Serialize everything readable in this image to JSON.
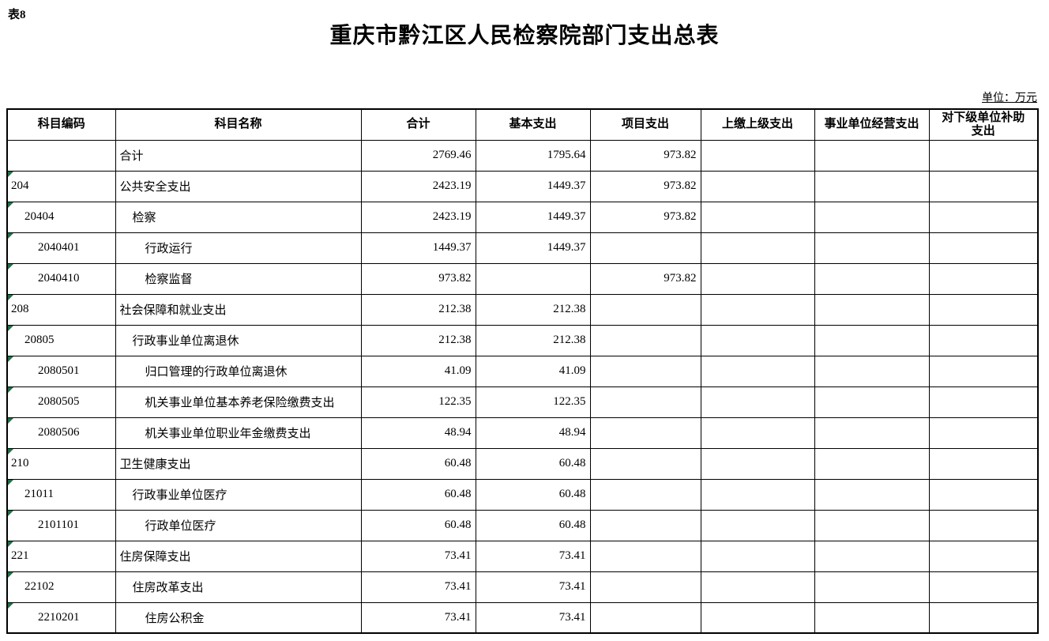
{
  "page": {
    "table_label": "表8",
    "title": "重庆市黔江区人民检察院部门支出总表",
    "unit_note": "单位：万元"
  },
  "colors": {
    "flag_green": "#1e7145",
    "border": "#000000",
    "background": "#ffffff"
  },
  "table": {
    "columns": [
      "科目编码",
      "科目名称",
      "合计",
      "基本支出",
      "项目支出",
      "上缴上级支出",
      "事业单位经营支出",
      "对下级单位补助\n支出"
    ],
    "rows": [
      {
        "code": "",
        "name": "合计",
        "indent": 0,
        "total": "2769.46",
        "basic": "1795.64",
        "project": "973.82",
        "superior": "",
        "operating": "",
        "subsidy": "",
        "flag": false
      },
      {
        "code": "204",
        "name": "公共安全支出",
        "indent": 0,
        "total": "2423.19",
        "basic": "1449.37",
        "project": "973.82",
        "superior": "",
        "operating": "",
        "subsidy": "",
        "flag": true
      },
      {
        "code": "20404",
        "name": "检察",
        "indent": 1,
        "total": "2423.19",
        "basic": "1449.37",
        "project": "973.82",
        "superior": "",
        "operating": "",
        "subsidy": "",
        "flag": true
      },
      {
        "code": "2040401",
        "name": "行政运行",
        "indent": 2,
        "total": "1449.37",
        "basic": "1449.37",
        "project": "",
        "superior": "",
        "operating": "",
        "subsidy": "",
        "flag": true
      },
      {
        "code": "2040410",
        "name": "检察监督",
        "indent": 2,
        "total": "973.82",
        "basic": "",
        "project": "973.82",
        "superior": "",
        "operating": "",
        "subsidy": "",
        "flag": true
      },
      {
        "code": "208",
        "name": "社会保障和就业支出",
        "indent": 0,
        "total": "212.38",
        "basic": "212.38",
        "project": "",
        "superior": "",
        "operating": "",
        "subsidy": "",
        "flag": true
      },
      {
        "code": "20805",
        "name": "行政事业单位离退休",
        "indent": 1,
        "total": "212.38",
        "basic": "212.38",
        "project": "",
        "superior": "",
        "operating": "",
        "subsidy": "",
        "flag": true
      },
      {
        "code": "2080501",
        "name": "归口管理的行政单位离退休",
        "indent": 2,
        "total": "41.09",
        "basic": "41.09",
        "project": "",
        "superior": "",
        "operating": "",
        "subsidy": "",
        "flag": true
      },
      {
        "code": "2080505",
        "name": "机关事业单位基本养老保险缴费支出",
        "indent": 2,
        "total": "122.35",
        "basic": "122.35",
        "project": "",
        "superior": "",
        "operating": "",
        "subsidy": "",
        "flag": true
      },
      {
        "code": "2080506",
        "name": "机关事业单位职业年金缴费支出",
        "indent": 2,
        "total": "48.94",
        "basic": "48.94",
        "project": "",
        "superior": "",
        "operating": "",
        "subsidy": "",
        "flag": true
      },
      {
        "code": "210",
        "name": "卫生健康支出",
        "indent": 0,
        "total": "60.48",
        "basic": "60.48",
        "project": "",
        "superior": "",
        "operating": "",
        "subsidy": "",
        "flag": true
      },
      {
        "code": "21011",
        "name": "行政事业单位医疗",
        "indent": 1,
        "total": "60.48",
        "basic": "60.48",
        "project": "",
        "superior": "",
        "operating": "",
        "subsidy": "",
        "flag": true
      },
      {
        "code": "2101101",
        "name": "行政单位医疗",
        "indent": 2,
        "total": "60.48",
        "basic": "60.48",
        "project": "",
        "superior": "",
        "operating": "",
        "subsidy": "",
        "flag": true
      },
      {
        "code": "221",
        "name": "住房保障支出",
        "indent": 0,
        "total": "73.41",
        "basic": "73.41",
        "project": "",
        "superior": "",
        "operating": "",
        "subsidy": "",
        "flag": true
      },
      {
        "code": "22102",
        "name": "住房改革支出",
        "indent": 1,
        "total": "73.41",
        "basic": "73.41",
        "project": "",
        "superior": "",
        "operating": "",
        "subsidy": "",
        "flag": true
      },
      {
        "code": "2210201",
        "name": "住房公积金",
        "indent": 2,
        "total": "73.41",
        "basic": "73.41",
        "project": "",
        "superior": "",
        "operating": "",
        "subsidy": "",
        "flag": true
      }
    ]
  }
}
